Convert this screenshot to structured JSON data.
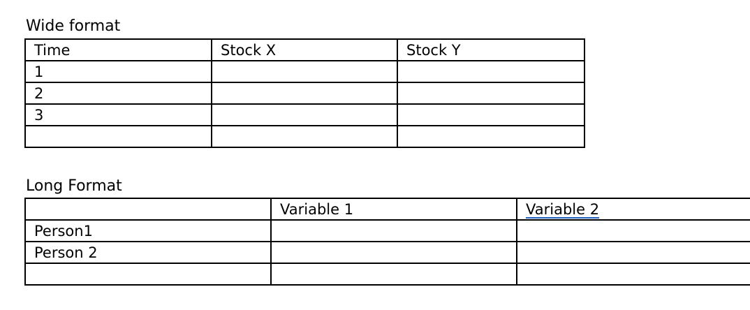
{
  "wide": {
    "heading": "Wide format",
    "rows": [
      [
        "Time",
        "Stock X",
        "Stock Y"
      ],
      [
        "1",
        "",
        ""
      ],
      [
        "2",
        "",
        ""
      ],
      [
        "3",
        "",
        ""
      ],
      [
        "",
        "",
        ""
      ]
    ]
  },
  "long": {
    "heading": "Long Format",
    "rows": [
      [
        "",
        "Variable 1",
        "Variable  2"
      ],
      [
        "Person1",
        "",
        ""
      ],
      [
        "Person 2",
        "",
        ""
      ],
      [
        "",
        "",
        ""
      ]
    ]
  }
}
